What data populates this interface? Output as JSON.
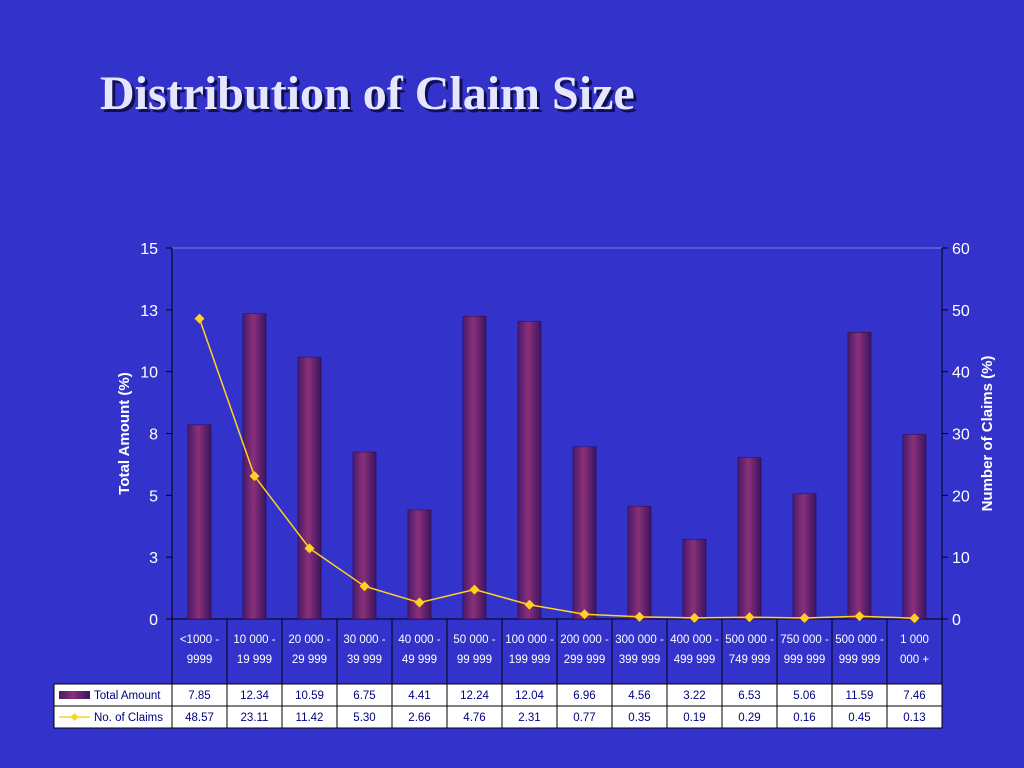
{
  "slide": {
    "title": "Distribution of Claim Size"
  },
  "colors": {
    "background": "#3333cc",
    "bar": "#7a2a6e",
    "line": "#ffd21f",
    "text": "#ffffff",
    "table_bg": "#ffffff",
    "table_text": "#000080"
  },
  "chart_data": {
    "type": "bar",
    "categories": [
      [
        "<1000 -",
        "9999"
      ],
      [
        "10 000 -",
        "19 999"
      ],
      [
        "20 000 -",
        "29 999"
      ],
      [
        "30 000 -",
        "39 999"
      ],
      [
        "40 000 -",
        "49 999"
      ],
      [
        "50 000 -",
        "99 999"
      ],
      [
        "100 000 -",
        "199 999"
      ],
      [
        "200 000 -",
        "299 999"
      ],
      [
        "300 000 -",
        "399 999"
      ],
      [
        "400 000 -",
        "499 999"
      ],
      [
        "500 000 -",
        "749 999"
      ],
      [
        "750 000 -",
        "999 999"
      ],
      [
        "500 000 -",
        "999 999"
      ],
      [
        "1 000",
        "000 +"
      ]
    ],
    "series": [
      {
        "name": "Total Amount",
        "kind": "bar",
        "axis": "left",
        "values": [
          7.85,
          12.34,
          10.59,
          6.75,
          4.41,
          12.24,
          12.04,
          6.96,
          4.56,
          3.22,
          6.53,
          5.06,
          11.59,
          7.46
        ],
        "table_values": [
          "7.85",
          "12.34",
          "10.59",
          "6.75",
          "4.41",
          "12.24",
          "12.04",
          "6.96",
          "4.56",
          "3.22",
          "6.53",
          "5.06",
          "11.59",
          "7.46"
        ]
      },
      {
        "name": "No. of Claims",
        "kind": "line",
        "axis": "right",
        "values": [
          48.57,
          23.11,
          11.42,
          5.3,
          2.66,
          4.76,
          2.31,
          0.77,
          0.35,
          0.19,
          0.29,
          0.16,
          0.45,
          0.13
        ],
        "table_values": [
          "48.57",
          "23.11",
          "11.42",
          "5.30",
          "2.66",
          "4.76",
          "2.31",
          "0.77",
          "0.35",
          "0.19",
          "0.29",
          "0.16",
          "0.45",
          "0.13"
        ]
      }
    ],
    "y_left": {
      "label": "Total Amount (%)",
      "ylim": [
        0,
        15
      ],
      "ticks": [
        0,
        2.5,
        5,
        7.5,
        10,
        12.5,
        15
      ],
      "tick_labels": [
        "0",
        "3",
        "5",
        "8",
        "10",
        "13",
        "15"
      ]
    },
    "y_right": {
      "label": "Number of Claims (%)",
      "ylim": [
        0,
        60
      ],
      "ticks": [
        0,
        10,
        20,
        30,
        40,
        50,
        60
      ],
      "tick_labels": [
        "0",
        "10",
        "20",
        "30",
        "40",
        "50",
        "60"
      ]
    },
    "data_table": true,
    "grid": false
  }
}
